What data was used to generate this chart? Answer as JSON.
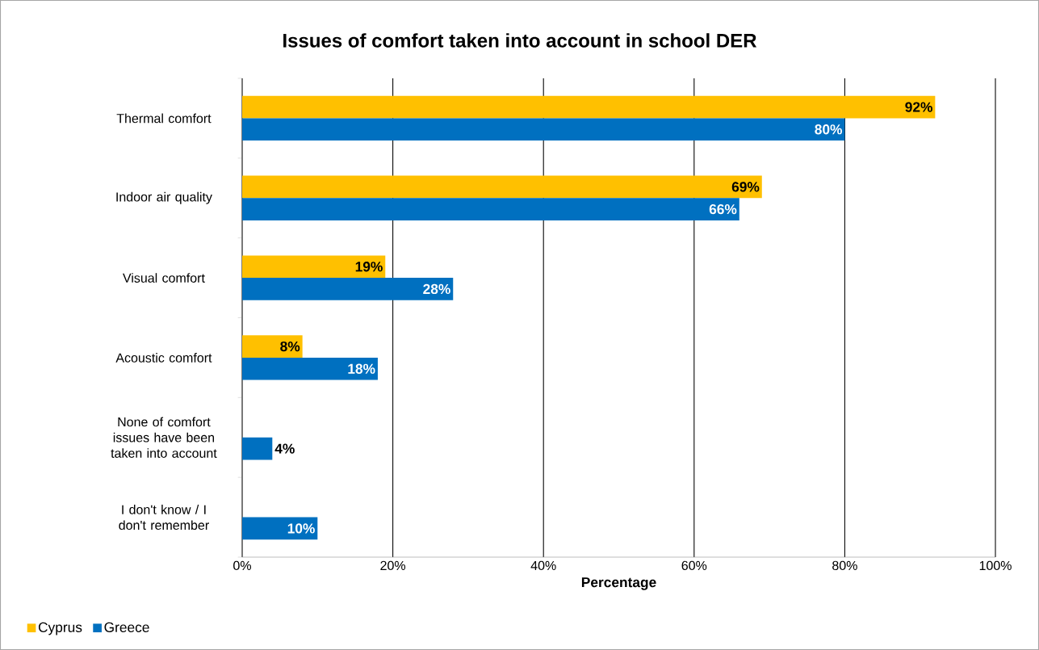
{
  "chart_data": {
    "type": "bar",
    "orientation": "horizontal",
    "title": "Issues of comfort taken into account in school DER",
    "xlabel": "Percentage",
    "categories": [
      "Thermal comfort",
      "Indoor air quality",
      "Visual comfort",
      "Acoustic comfort",
      "None of comfort issues have been taken into account",
      "I don't know / I don't remember"
    ],
    "series": [
      {
        "name": "Cyprus",
        "color": "#ffc000",
        "values": [
          92,
          69,
          19,
          8,
          null,
          null
        ],
        "value_labels": [
          "92%",
          "69%",
          "19%",
          "8%",
          null,
          null
        ]
      },
      {
        "name": "Greece",
        "color": "#0070c0",
        "values": [
          80,
          66,
          28,
          18,
          4,
          10
        ],
        "value_labels": [
          "80%",
          "66%",
          "28%",
          "18%",
          "4%",
          "10%"
        ]
      }
    ],
    "xlim": [
      0,
      100
    ],
    "xticks": [
      {
        "value": 0,
        "label": "0%"
      },
      {
        "value": 20,
        "label": "20%"
      },
      {
        "value": 40,
        "label": "40%"
      },
      {
        "value": 60,
        "label": "60%"
      },
      {
        "value": 80,
        "label": "80%"
      },
      {
        "value": 100,
        "label": "100%"
      }
    ],
    "grid": "x",
    "legend": "bottom left"
  }
}
